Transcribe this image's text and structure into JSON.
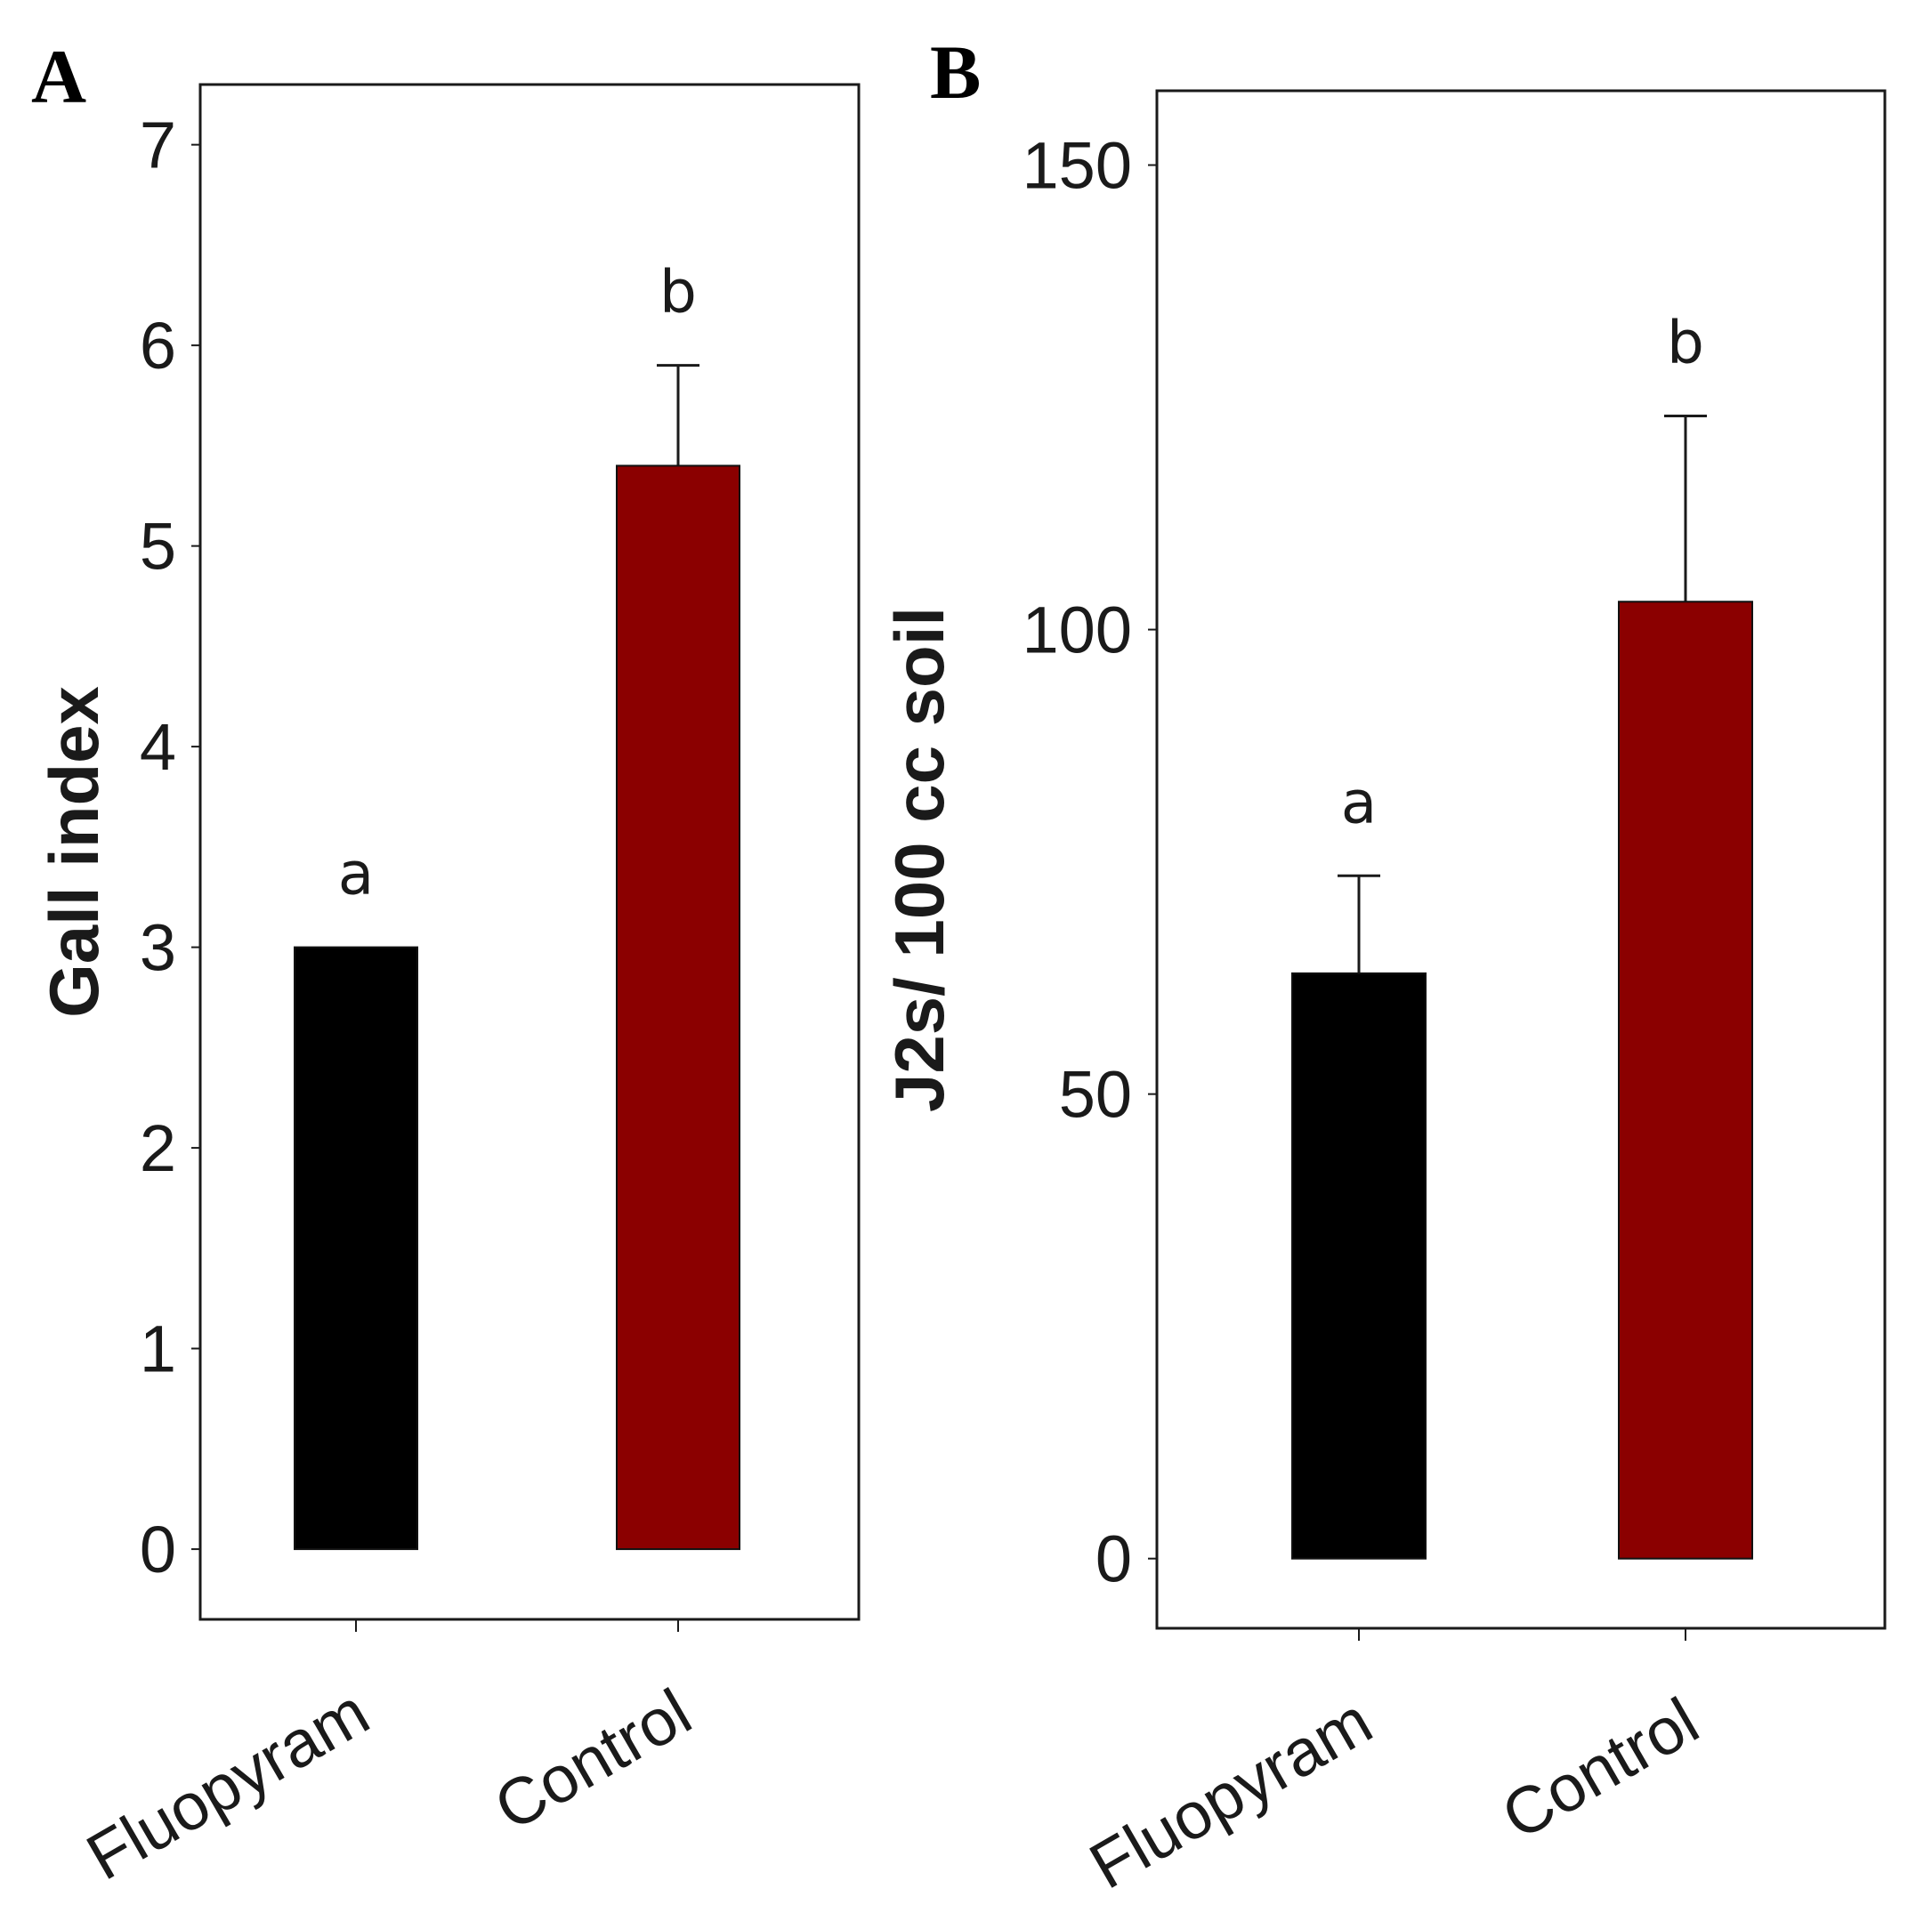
{
  "chart_data": [
    {
      "type": "bar",
      "panel": "A",
      "title": "",
      "xlabel": "",
      "ylabel": "Gall index",
      "categories": [
        "Fluopyram",
        "Control"
      ],
      "values": [
        3.0,
        5.4
      ],
      "error_upper": [
        3.0,
        5.9
      ],
      "significance": [
        "a",
        "b"
      ],
      "colors": [
        "#000000",
        "#8b0000"
      ],
      "ylim": [
        -0.35,
        7.3
      ],
      "yticks": [
        0,
        1,
        2,
        3,
        4,
        5,
        6,
        7
      ],
      "grid": false,
      "legend": "none"
    },
    {
      "type": "bar",
      "panel": "B",
      "title": "",
      "xlabel": "",
      "ylabel": "J2s/ 100 cc soil",
      "categories": [
        "Fluopyram",
        "Control"
      ],
      "values": [
        63,
        103
      ],
      "error_upper": [
        73.5,
        123
      ],
      "significance": [
        "a",
        "b"
      ],
      "colors": [
        "#000000",
        "#8b0000"
      ],
      "ylim": [
        -7.5,
        158
      ],
      "yticks": [
        0,
        50,
        100,
        150
      ],
      "grid": false,
      "legend": "none"
    }
  ]
}
